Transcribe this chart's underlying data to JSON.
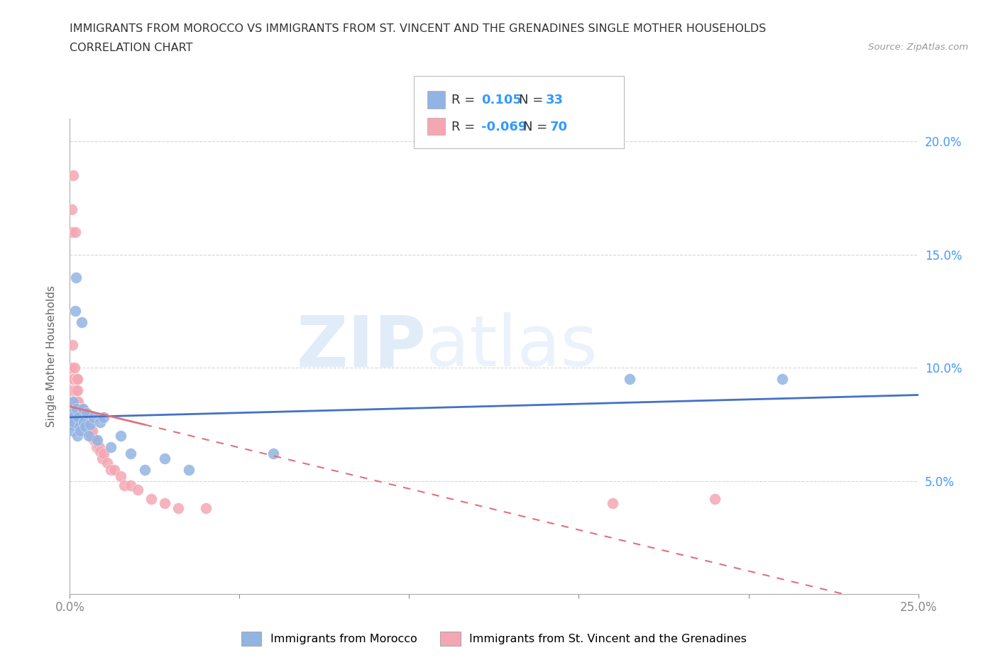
{
  "title_line1": "IMMIGRANTS FROM MOROCCO VS IMMIGRANTS FROM ST. VINCENT AND THE GRENADINES SINGLE MOTHER HOUSEHOLDS",
  "title_line2": "CORRELATION CHART",
  "source_text": "Source: ZipAtlas.com",
  "ylabel": "Single Mother Households",
  "xlim": [
    0.0,
    0.25
  ],
  "ylim": [
    0.0,
    0.21
  ],
  "yticks": [
    0.05,
    0.1,
    0.15,
    0.2
  ],
  "ytick_labels": [
    "5.0%",
    "10.0%",
    "15.0%",
    "20.0%"
  ],
  "xticks": [
    0.0,
    0.05,
    0.1,
    0.15,
    0.2,
    0.25
  ],
  "xtick_labels": [
    "0.0%",
    "",
    "",
    "",
    "",
    "25.0%"
  ],
  "morocco_R": 0.105,
  "morocco_N": 33,
  "svg_R": -0.069,
  "svg_N": 70,
  "morocco_color": "#92b4e3",
  "svg_color": "#f4a7b3",
  "morocco_line_color": "#4472c4",
  "svg_line_color": "#e07080",
  "watermark_top": "ZIP",
  "watermark_bottom": "atlas",
  "legend_morocco_label": "Immigrants from Morocco",
  "legend_svg_label": "Immigrants from St. Vincent and the Grenadines",
  "morocco_x": [
    0.0005,
    0.0006,
    0.0007,
    0.0008,
    0.001,
    0.0012,
    0.0015,
    0.0018,
    0.002,
    0.0022,
    0.0025,
    0.0028,
    0.003,
    0.0035,
    0.0038,
    0.004,
    0.0045,
    0.005,
    0.0055,
    0.006,
    0.007,
    0.008,
    0.009,
    0.01,
    0.012,
    0.015,
    0.018,
    0.022,
    0.028,
    0.035,
    0.06,
    0.165,
    0.21
  ],
  "morocco_y": [
    0.08,
    0.075,
    0.072,
    0.078,
    0.085,
    0.076,
    0.125,
    0.14,
    0.082,
    0.07,
    0.078,
    0.074,
    0.072,
    0.12,
    0.082,
    0.076,
    0.074,
    0.08,
    0.07,
    0.075,
    0.078,
    0.068,
    0.076,
    0.078,
    0.065,
    0.07,
    0.062,
    0.055,
    0.06,
    0.055,
    0.062,
    0.095,
    0.095
  ],
  "svg_x": [
    0.0003,
    0.0004,
    0.0005,
    0.0006,
    0.0006,
    0.0007,
    0.0008,
    0.0008,
    0.0009,
    0.001,
    0.001,
    0.0011,
    0.0012,
    0.0013,
    0.0014,
    0.0015,
    0.0016,
    0.0017,
    0.0018,
    0.0019,
    0.002,
    0.0021,
    0.0022,
    0.0023,
    0.0024,
    0.0025,
    0.0026,
    0.0027,
    0.0028,
    0.0029,
    0.003,
    0.0031,
    0.0032,
    0.0033,
    0.0035,
    0.0037,
    0.0039,
    0.004,
    0.0042,
    0.0044,
    0.0046,
    0.0048,
    0.005,
    0.0052,
    0.0055,
    0.0058,
    0.006,
    0.0063,
    0.0066,
    0.007,
    0.0074,
    0.0078,
    0.0082,
    0.0086,
    0.009,
    0.0095,
    0.01,
    0.011,
    0.012,
    0.013,
    0.015,
    0.016,
    0.018,
    0.02,
    0.024,
    0.028,
    0.032,
    0.04,
    0.16,
    0.19
  ],
  "svg_y": [
    0.08,
    0.09,
    0.16,
    0.17,
    0.1,
    0.095,
    0.085,
    0.11,
    0.095,
    0.185,
    0.075,
    0.09,
    0.095,
    0.1,
    0.085,
    0.16,
    0.08,
    0.09,
    0.085,
    0.095,
    0.08,
    0.085,
    0.09,
    0.095,
    0.078,
    0.085,
    0.082,
    0.078,
    0.082,
    0.08,
    0.078,
    0.08,
    0.075,
    0.08,
    0.078,
    0.082,
    0.075,
    0.08,
    0.076,
    0.078,
    0.074,
    0.075,
    0.072,
    0.076,
    0.074,
    0.072,
    0.072,
    0.07,
    0.072,
    0.068,
    0.068,
    0.065,
    0.065,
    0.065,
    0.063,
    0.06,
    0.062,
    0.058,
    0.055,
    0.055,
    0.052,
    0.048,
    0.048,
    0.046,
    0.042,
    0.04,
    0.038,
    0.038,
    0.04,
    0.042
  ]
}
